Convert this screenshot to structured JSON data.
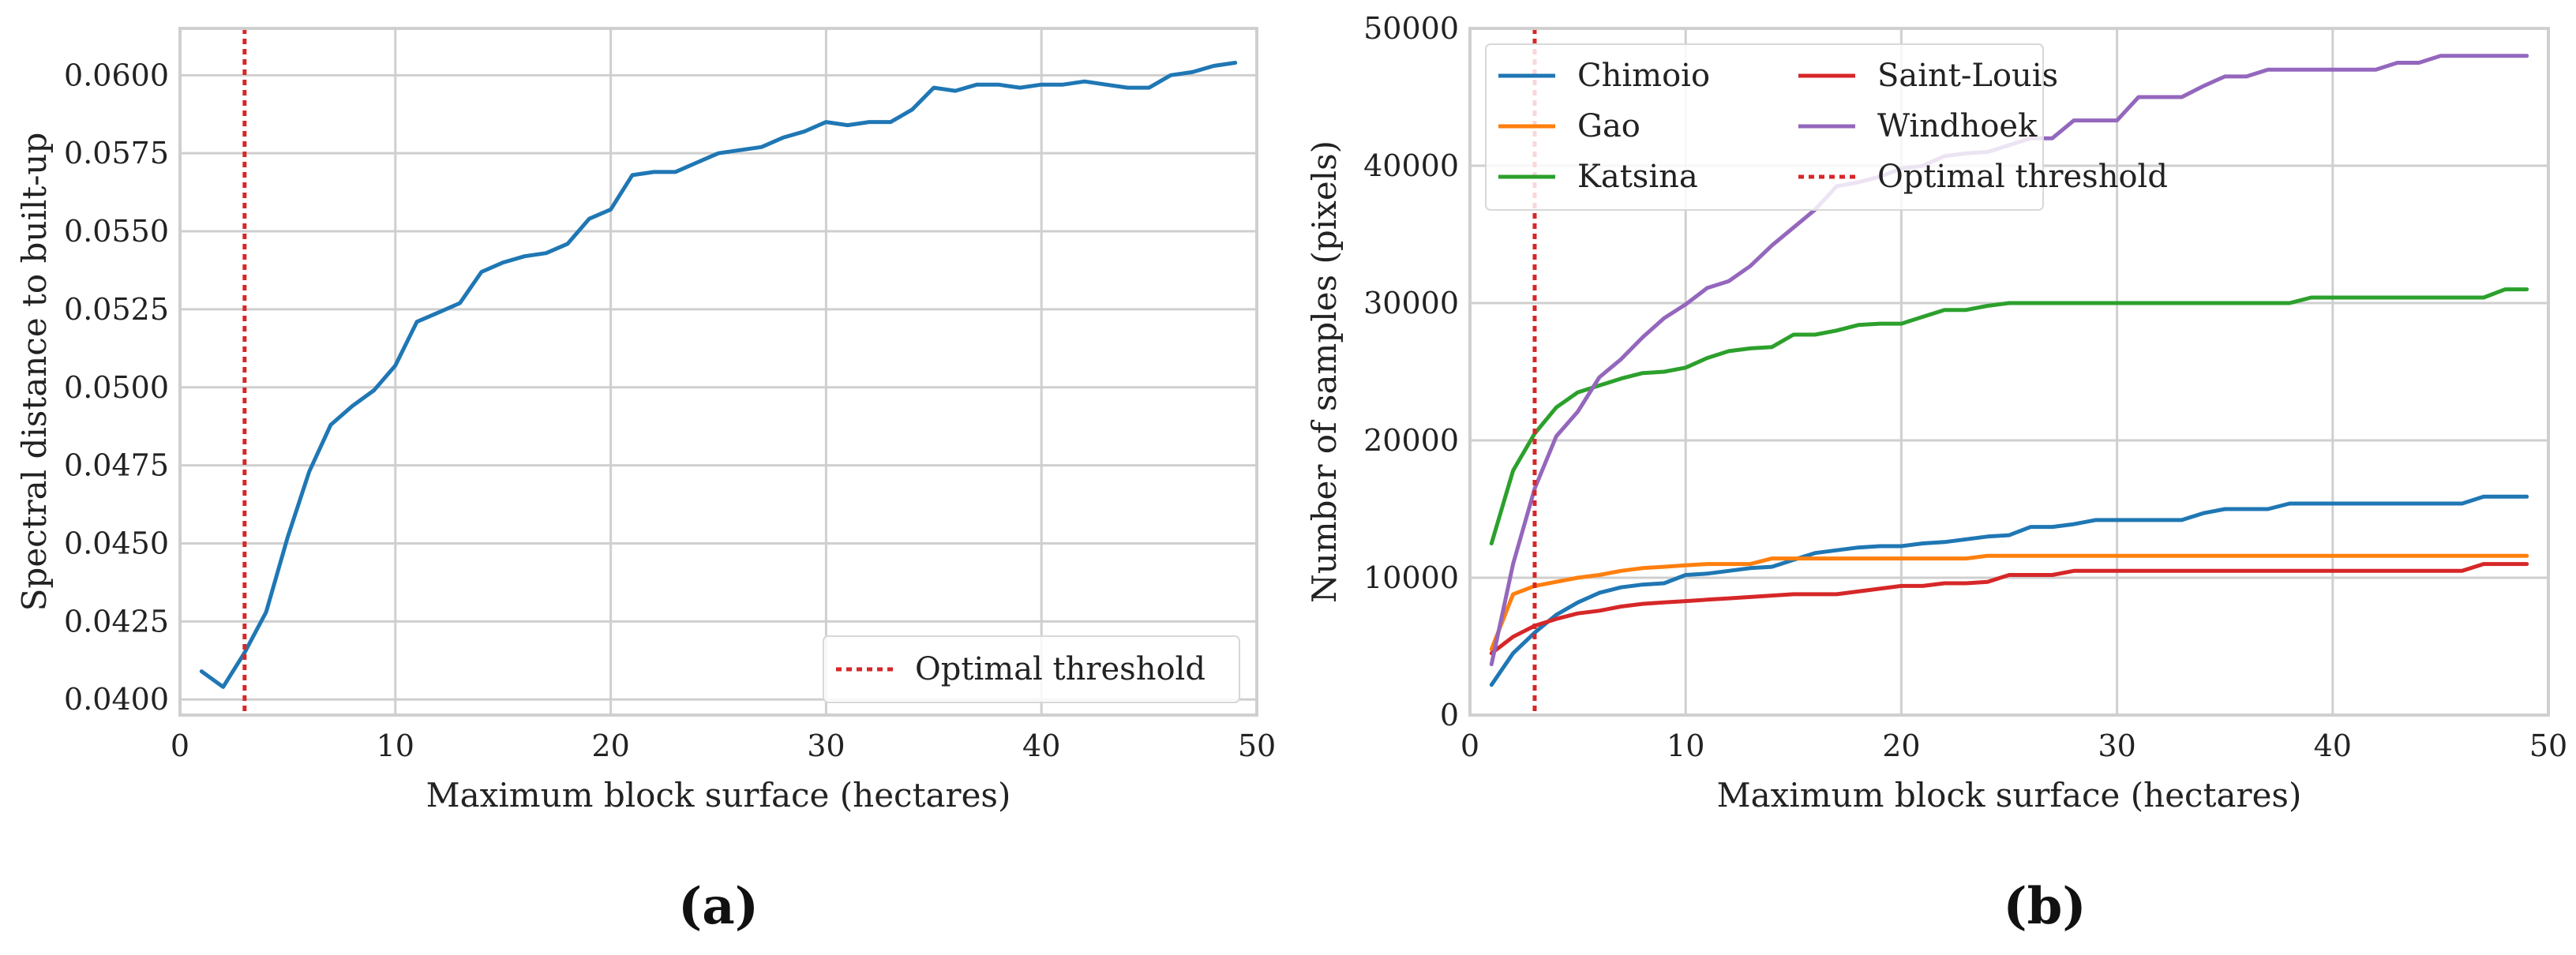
{
  "panels": [
    {
      "id": "a",
      "label": "(a)"
    },
    {
      "id": "b",
      "label": "(b)"
    }
  ],
  "chart_data": [
    {
      "type": "line",
      "panel": "a",
      "title": "",
      "xlabel": "Maximum block surface (hectares)",
      "ylabel": "Spectral distance to built-up",
      "xlim": [
        0,
        50
      ],
      "ylim": [
        0.0395,
        0.0615
      ],
      "xticks": [
        0,
        10,
        20,
        30,
        40,
        50
      ],
      "yticks": [
        0.04,
        0.0425,
        0.045,
        0.0475,
        0.05,
        0.0525,
        0.055,
        0.0575,
        0.06
      ],
      "ytick_labels": [
        "0.0400",
        "0.0425",
        "0.0450",
        "0.0475",
        "0.0500",
        "0.0525",
        "0.0550",
        "0.0575",
        "0.0600"
      ],
      "grid": true,
      "legend_position": "lower-right",
      "x": [
        1,
        2,
        3,
        4,
        5,
        6,
        7,
        8,
        9,
        10,
        11,
        12,
        13,
        14,
        15,
        16,
        17,
        18,
        19,
        20,
        21,
        22,
        23,
        24,
        25,
        26,
        27,
        28,
        29,
        30,
        31,
        32,
        33,
        34,
        35,
        36,
        37,
        38,
        39,
        40,
        41,
        42,
        43,
        44,
        45,
        46,
        47,
        48,
        49
      ],
      "series": [
        {
          "name": "Spectral distance",
          "color": "#1f77b4",
          "values": [
            0.0409,
            0.0404,
            0.0415,
            0.0428,
            0.0452,
            0.0473,
            0.0488,
            0.0494,
            0.0499,
            0.0507,
            0.0521,
            0.0524,
            0.0527,
            0.0537,
            0.054,
            0.0542,
            0.0543,
            0.0546,
            0.0554,
            0.0557,
            0.0568,
            0.0569,
            0.0569,
            0.0572,
            0.0575,
            0.0576,
            0.0577,
            0.058,
            0.0582,
            0.0585,
            0.0584,
            0.0585,
            0.0585,
            0.0589,
            0.0596,
            0.0595,
            0.0597,
            0.0597,
            0.0596,
            0.0597,
            0.0597,
            0.0598,
            0.0597,
            0.0596,
            0.0596,
            0.06,
            0.0601,
            0.0603,
            0.0604
          ]
        }
      ],
      "threshold": {
        "name": "Optimal threshold",
        "x": 3,
        "color": "#d62728"
      }
    },
    {
      "type": "line",
      "panel": "b",
      "title": "",
      "xlabel": "Maximum block surface (hectares)",
      "ylabel": "Number of samples (pixels)",
      "xlim": [
        0,
        50
      ],
      "ylim": [
        0,
        50000
      ],
      "xticks": [
        0,
        10,
        20,
        30,
        40,
        50
      ],
      "yticks": [
        0,
        10000,
        20000,
        30000,
        40000,
        50000
      ],
      "ytick_labels": [
        "0",
        "10000",
        "20000",
        "30000",
        "40000",
        "50000"
      ],
      "grid": true,
      "legend_position": "top-left",
      "x": [
        1,
        2,
        3,
        4,
        5,
        6,
        7,
        8,
        9,
        10,
        11,
        12,
        13,
        14,
        15,
        16,
        17,
        18,
        19,
        20,
        21,
        22,
        23,
        24,
        25,
        26,
        27,
        28,
        29,
        30,
        31,
        32,
        33,
        34,
        35,
        36,
        37,
        38,
        39,
        40,
        41,
        42,
        43,
        44,
        45,
        46,
        47,
        48,
        49
      ],
      "series": [
        {
          "name": "Chimoio",
          "color": "#1f77b4",
          "values": [
            2200,
            4500,
            6000,
            7300,
            8200,
            8900,
            9300,
            9500,
            9600,
            10200,
            10300,
            10500,
            10700,
            10800,
            11300,
            11800,
            12000,
            12200,
            12300,
            12300,
            12500,
            12600,
            12800,
            13000,
            13100,
            13700,
            13700,
            13900,
            14200,
            14200,
            14200,
            14200,
            14200,
            14700,
            15000,
            15000,
            15000,
            15400,
            15400,
            15400,
            15400,
            15400,
            15400,
            15400,
            15400,
            15400,
            15900,
            15900,
            15900
          ]
        },
        {
          "name": "Gao",
          "color": "#ff7f0e",
          "values": [
            4800,
            8800,
            9400,
            9700,
            10000,
            10200,
            10500,
            10700,
            10800,
            10900,
            11000,
            11000,
            11000,
            11400,
            11400,
            11400,
            11400,
            11400,
            11400,
            11400,
            11400,
            11400,
            11400,
            11600,
            11600,
            11600,
            11600,
            11600,
            11600,
            11600,
            11600,
            11600,
            11600,
            11600,
            11600,
            11600,
            11600,
            11600,
            11600,
            11600,
            11600,
            11600,
            11600,
            11600,
            11600,
            11600,
            11600,
            11600,
            11600
          ]
        },
        {
          "name": "Katsina",
          "color": "#2ca02c",
          "values": [
            12500,
            17800,
            20500,
            22400,
            23500,
            24000,
            24500,
            24900,
            25000,
            25300,
            26000,
            26500,
            26700,
            26800,
            27700,
            27700,
            28000,
            28400,
            28500,
            28500,
            29000,
            29500,
            29500,
            29800,
            30000,
            30000,
            30000,
            30000,
            30000,
            30000,
            30000,
            30000,
            30000,
            30000,
            30000,
            30000,
            30000,
            30000,
            30400,
            30400,
            30400,
            30400,
            30400,
            30400,
            30400,
            30400,
            30400,
            31000,
            31000
          ]
        },
        {
          "name": "Saint-Louis",
          "color": "#d62728",
          "values": [
            4500,
            5700,
            6500,
            7000,
            7400,
            7600,
            7900,
            8100,
            8200,
            8300,
            8400,
            8500,
            8600,
            8700,
            8800,
            8800,
            8800,
            9000,
            9200,
            9400,
            9400,
            9600,
            9600,
            9700,
            10200,
            10200,
            10200,
            10500,
            10500,
            10500,
            10500,
            10500,
            10500,
            10500,
            10500,
            10500,
            10500,
            10500,
            10500,
            10500,
            10500,
            10500,
            10500,
            10500,
            10500,
            10500,
            11000,
            11000,
            11000
          ]
        },
        {
          "name": "Windhoek",
          "color": "#9467bd",
          "values": [
            3700,
            11000,
            16500,
            20300,
            22100,
            24600,
            25900,
            27500,
            28900,
            29900,
            31100,
            31600,
            32700,
            34200,
            35500,
            36800,
            38500,
            38800,
            39200,
            39800,
            40000,
            40700,
            40900,
            41000,
            41500,
            42000,
            42000,
            43300,
            43300,
            43300,
            45000,
            45000,
            45000,
            45800,
            46500,
            46500,
            47000,
            47000,
            47000,
            47000,
            47000,
            47000,
            47500,
            47500,
            48000,
            48000,
            48000,
            48000,
            48000
          ]
        }
      ],
      "threshold": {
        "name": "Optimal threshold",
        "x": 3,
        "color": "#d62728"
      }
    }
  ]
}
